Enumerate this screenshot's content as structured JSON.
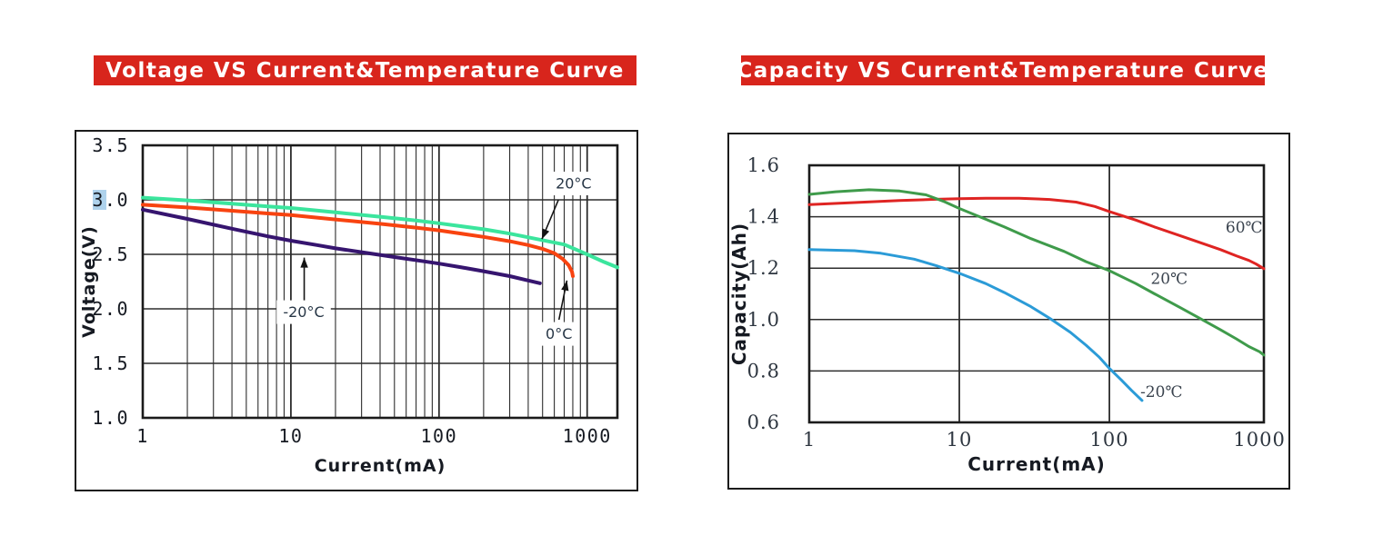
{
  "page": {
    "background": "#ffffff",
    "banner_color": "#d8251c",
    "banner_text_color": "#ffffff"
  },
  "chart_data": [
    {
      "type": "line",
      "title": "Voltage VS Current&Temperature Curve",
      "x_axis": {
        "label": "Current(mA)",
        "scale": "log",
        "min": 1,
        "max": 1600,
        "ticks": [
          {
            "value": 1,
            "label": "1"
          },
          {
            "value": 10,
            "label": "10"
          },
          {
            "value": 100,
            "label": "100"
          },
          {
            "value": 1000,
            "label": "1000"
          }
        ],
        "major_gridlines": [
          10,
          100,
          1000
        ],
        "minor_gridlines": true
      },
      "y_axis": {
        "label": "Voltage(V)",
        "min": 1.0,
        "max": 3.5,
        "ticks": [
          {
            "value": 3.5,
            "label": "3.5"
          },
          {
            "value": 3.0,
            "label": "3.0",
            "highlight": true
          },
          {
            "value": 2.5,
            "label": "2.5"
          },
          {
            "value": 2.0,
            "label": "2.0"
          },
          {
            "value": 1.5,
            "label": "1.5"
          },
          {
            "value": 1.0,
            "label": "1.0"
          }
        ],
        "highlight_color": "#aed2ec"
      },
      "line_width": 4,
      "series": [
        {
          "name": "20°C",
          "color": "#3be59d",
          "points": [
            [
              1,
              3.02
            ],
            [
              2,
              2.995
            ],
            [
              4,
              2.965
            ],
            [
              7,
              2.94
            ],
            [
              10,
              2.925
            ],
            [
              20,
              2.885
            ],
            [
              40,
              2.845
            ],
            [
              70,
              2.81
            ],
            [
              100,
              2.785
            ],
            [
              200,
              2.73
            ],
            [
              300,
              2.69
            ],
            [
              500,
              2.63
            ],
            [
              700,
              2.59
            ],
            [
              1000,
              2.5
            ],
            [
              1300,
              2.43
            ],
            [
              1600,
              2.38
            ]
          ]
        },
        {
          "name": "0°C",
          "color": "#f84310",
          "points": [
            [
              1,
              2.955
            ],
            [
              2,
              2.93
            ],
            [
              4,
              2.9
            ],
            [
              7,
              2.875
            ],
            [
              10,
              2.86
            ],
            [
              20,
              2.82
            ],
            [
              40,
              2.78
            ],
            [
              70,
              2.745
            ],
            [
              100,
              2.72
            ],
            [
              200,
              2.66
            ],
            [
              300,
              2.62
            ],
            [
              400,
              2.585
            ],
            [
              500,
              2.55
            ],
            [
              600,
              2.51
            ],
            [
              680,
              2.46
            ],
            [
              750,
              2.4
            ],
            [
              790,
              2.34
            ],
            [
              800,
              2.3
            ]
          ]
        },
        {
          "name": "-20°C",
          "color": "#36156f",
          "points": [
            [
              1,
              2.91
            ],
            [
              2,
              2.825
            ],
            [
              4,
              2.735
            ],
            [
              7,
              2.665
            ],
            [
              10,
              2.625
            ],
            [
              15,
              2.585
            ],
            [
              20,
              2.555
            ],
            [
              30,
              2.52
            ],
            [
              50,
              2.475
            ],
            [
              80,
              2.435
            ],
            [
              100,
              2.415
            ],
            [
              150,
              2.375
            ],
            [
              200,
              2.345
            ],
            [
              300,
              2.3
            ],
            [
              400,
              2.26
            ],
            [
              480,
              2.235
            ]
          ]
        }
      ],
      "annotations": [
        {
          "text": "20°C",
          "x": 810,
          "y": 3.15,
          "box": true,
          "arrow": {
            "from": [
              640,
              3.0
            ],
            "to": [
              495,
              2.64
            ]
          }
        },
        {
          "text": "0°C",
          "x": 645,
          "y": 1.77,
          "box": true,
          "arrow": {
            "from": [
              645,
              1.9
            ],
            "to": [
              730,
              2.26
            ]
          }
        },
        {
          "text": "-20°C",
          "x": 12.2,
          "y": 1.97,
          "box": true,
          "arrow": {
            "from": [
              12.3,
              2.06
            ],
            "to": [
              12.3,
              2.47
            ]
          }
        }
      ]
    },
    {
      "type": "line",
      "title": "Capacity VS Current&Temperature Curve",
      "x_axis": {
        "label": "Current(mA)",
        "scale": "log",
        "min": 1,
        "max": 1070,
        "ticks": [
          {
            "value": 1,
            "label": "1"
          },
          {
            "value": 10,
            "label": "10"
          },
          {
            "value": 100,
            "label": "100"
          },
          {
            "value": 1000,
            "label": "1000"
          }
        ],
        "major_gridlines": [
          10,
          100
        ],
        "minor_gridlines": false
      },
      "y_axis": {
        "label": "Capacity(Ah)",
        "min": 0.6,
        "max": 1.6,
        "ticks": [
          {
            "value": 1.6,
            "label": "1.6"
          },
          {
            "value": 1.4,
            "label": "1.4"
          },
          {
            "value": 1.2,
            "label": "1.2"
          },
          {
            "value": 1.0,
            "label": "1.0"
          },
          {
            "value": 0.8,
            "label": "0.8"
          },
          {
            "value": 0.6,
            "label": "0.6"
          }
        ]
      },
      "line_width": 3,
      "series": [
        {
          "name": "60℃",
          "color": "#df2422",
          "points": [
            [
              1,
              1.447
            ],
            [
              2,
              1.455
            ],
            [
              4,
              1.463
            ],
            [
              7,
              1.468
            ],
            [
              10,
              1.47
            ],
            [
              15,
              1.472
            ],
            [
              25,
              1.472
            ],
            [
              40,
              1.467
            ],
            [
              60,
              1.457
            ],
            [
              80,
              1.44
            ],
            [
              100,
              1.42
            ],
            [
              150,
              1.387
            ],
            [
              200,
              1.36
            ],
            [
              300,
              1.325
            ],
            [
              400,
              1.3
            ],
            [
              550,
              1.272
            ],
            [
              700,
              1.248
            ],
            [
              850,
              1.23
            ],
            [
              950,
              1.216
            ],
            [
              1070,
              1.198
            ]
          ]
        },
        {
          "name": "20℃",
          "color": "#3f9b4b",
          "points": [
            [
              1,
              1.487
            ],
            [
              1.5,
              1.497
            ],
            [
              2.5,
              1.505
            ],
            [
              4,
              1.5
            ],
            [
              6,
              1.485
            ],
            [
              8,
              1.458
            ],
            [
              10,
              1.432
            ],
            [
              15,
              1.39
            ],
            [
              20,
              1.36
            ],
            [
              30,
              1.315
            ],
            [
              50,
              1.265
            ],
            [
              70,
              1.225
            ],
            [
              100,
              1.19
            ],
            [
              150,
              1.14
            ],
            [
              200,
              1.1
            ],
            [
              300,
              1.045
            ],
            [
              400,
              1.005
            ],
            [
              550,
              0.96
            ],
            [
              700,
              0.925
            ],
            [
              850,
              0.895
            ],
            [
              1000,
              0.875
            ],
            [
              1070,
              0.862
            ]
          ]
        },
        {
          "name": "-20℃",
          "color": "#2b9bd7",
          "points": [
            [
              1,
              1.272
            ],
            [
              2,
              1.268
            ],
            [
              3,
              1.258
            ],
            [
              5,
              1.235
            ],
            [
              7,
              1.21
            ],
            [
              10,
              1.18
            ],
            [
              15,
              1.14
            ],
            [
              20,
              1.105
            ],
            [
              30,
              1.05
            ],
            [
              40,
              1.005
            ],
            [
              55,
              0.95
            ],
            [
              70,
              0.9
            ],
            [
              85,
              0.855
            ],
            [
              100,
              0.81
            ],
            [
              120,
              0.765
            ],
            [
              140,
              0.725
            ],
            [
              165,
              0.685
            ]
          ]
        }
      ],
      "annotations": [
        {
          "text": "60℃",
          "x": 790,
          "y": 1.36,
          "box": false
        },
        {
          "text": "20℃",
          "x": 250,
          "y": 1.16,
          "box": false
        },
        {
          "text": "-20℃",
          "x": 222,
          "y": 0.72,
          "box": false
        }
      ]
    }
  ]
}
